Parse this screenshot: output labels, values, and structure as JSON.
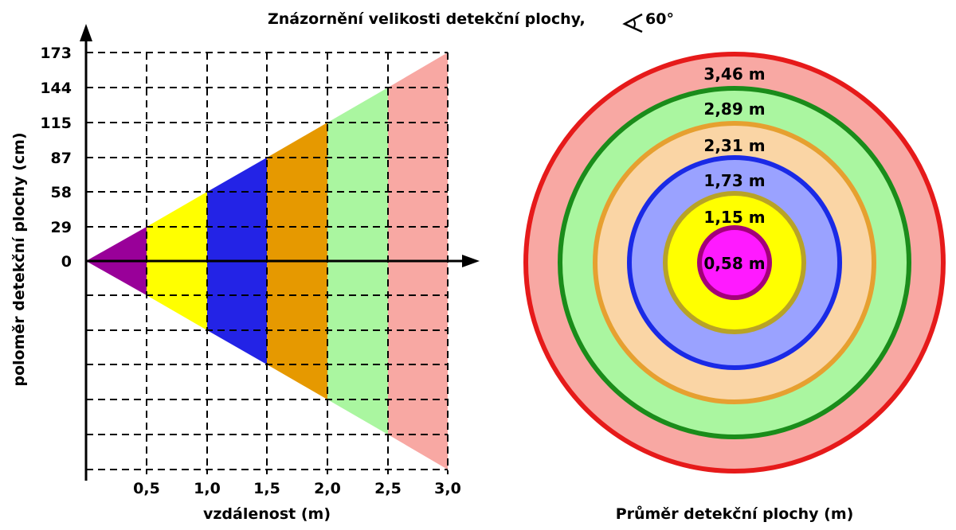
{
  "title": "Znázornění velikosti detekční plochy,",
  "angle_label": "60°",
  "left": {
    "ylabel": "poloměr detekční plochy (cm)",
    "xlabel": "vzdálenost (m)",
    "y_ticks": [
      "173",
      "144",
      "115",
      "87",
      "58",
      "29",
      "0"
    ],
    "x_ticks": [
      "0,5",
      "1,0",
      "1,5",
      "2,0",
      "2,5",
      "3,0"
    ]
  },
  "right": {
    "xlabel": "Průměr detekční plochy (m)",
    "ring_labels": [
      "3,46 m",
      "2,89 m",
      "2,31 m",
      "1,73 m",
      "1,15 m",
      "0,58 m"
    ]
  },
  "colors": {
    "purple": "#990099",
    "yellow": "#ffff00",
    "blue": "#2323e6",
    "orange": "#e69900",
    "light_green": "#aaf6a0",
    "pink": "#f8a8a3",
    "ring_red": "#e61a1a",
    "ring_green": "#1a8c1a",
    "ring_orange": "#e6a030",
    "ring_peach": "#fad5a5",
    "ring_blue": "#1a2ae6",
    "ring_blue_fill": "#9aa2ff",
    "ring_olive": "#b8a326",
    "ring_magenta": "#ff1aff",
    "ring_magenta_border": "#a3007a"
  },
  "chart_data": {
    "type": "area",
    "x": [
      0.5,
      1.0,
      1.5,
      2.0,
      2.5,
      3.0
    ],
    "values": [
      29,
      58,
      87,
      115,
      144,
      173
    ],
    "xlabel": "vzdálenost (m)",
    "ylabel": "poloměr detekční plochy (cm)",
    "diameters_m": [
      0.58,
      1.15,
      1.73,
      2.31,
      2.89,
      3.46
    ]
  }
}
